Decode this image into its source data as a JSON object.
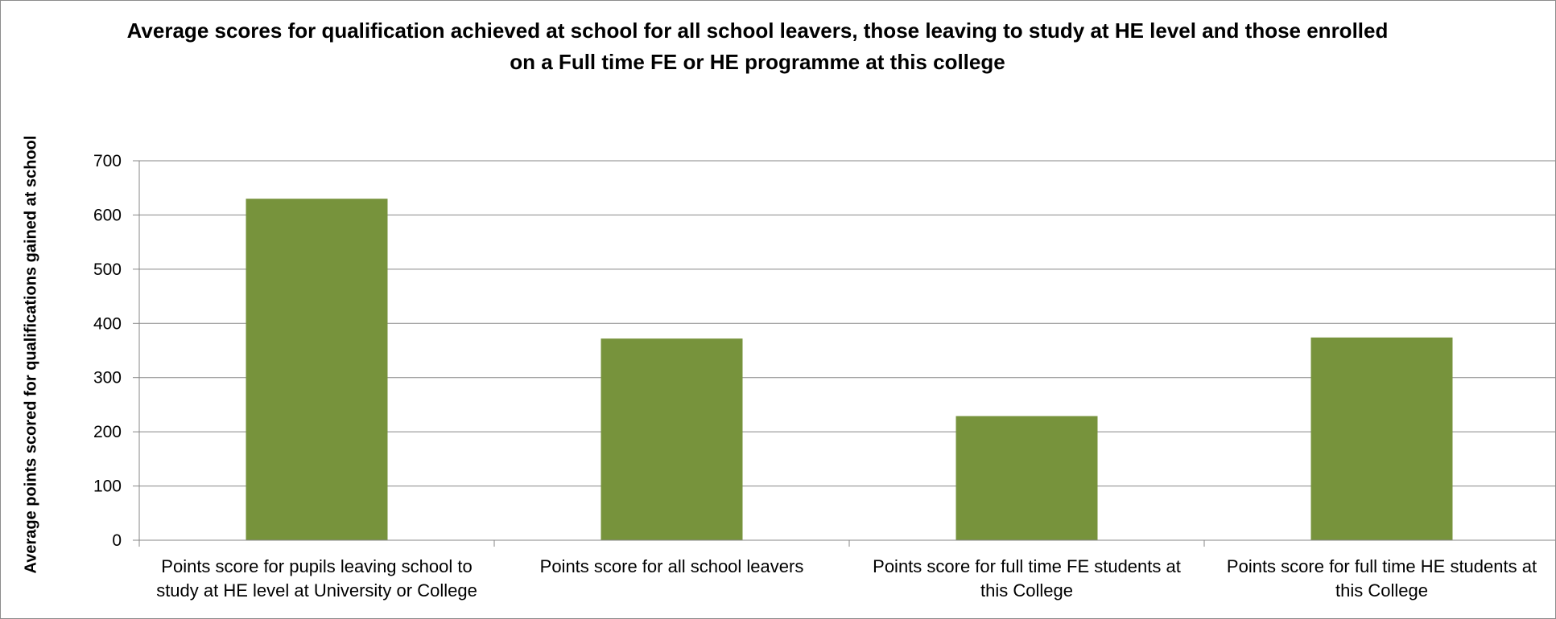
{
  "chart_data": {
    "type": "bar",
    "title": "Average scores for qualification achieved at school for all school leavers, those leaving to study at HE level and those enrolled on a Full time FE or HE programme at this college",
    "xlabel": "",
    "ylabel": "Average points scored for qualifications gained at school",
    "ylim": [
      0,
      700
    ],
    "yticks": [
      0,
      100,
      200,
      300,
      400,
      500,
      600,
      700
    ],
    "grid": true,
    "bar_color": "#77933c",
    "categories": [
      "Points score for pupils leaving school to study at HE level at University or College",
      "Points score for all school leavers",
      "Points score for full time FE students at this College",
      "Points score for full time HE students at this College"
    ],
    "values": [
      630,
      372,
      229,
      374
    ]
  }
}
